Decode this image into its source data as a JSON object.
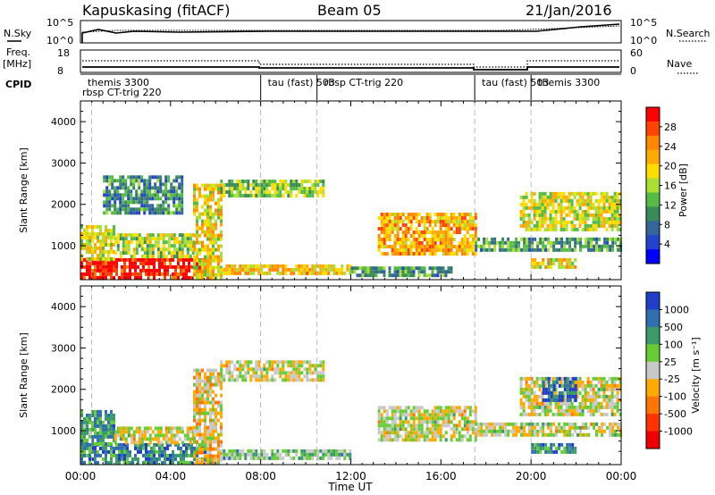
{
  "header": {
    "station": "Kapuskasing (fitACF)",
    "beam": "Beam 05",
    "date": "21/Jan/2016"
  },
  "top_panels": {
    "nsky_label": "N.Sky",
    "nsky_ticks": [
      "10^5",
      "10^0"
    ],
    "nsearch_label": "N.Search",
    "nsearch_ticks": [
      "10^5",
      "10^0"
    ],
    "freq_label": "Freq.",
    "freq_unit": "[MHz]",
    "freq_ticks": [
      "18",
      "8"
    ],
    "nave_label": "Nave",
    "nave_ticks": [
      "60",
      "0"
    ],
    "cpid_label": "CPID"
  },
  "cpid_segments": [
    {
      "t0": 0.0,
      "t1": 2.5,
      "names": [
        "themis 3300",
        "rbsp CT-trig 220"
      ]
    },
    {
      "t0": 8.0,
      "t1": 10.5,
      "names": [
        "tau (fast) 503"
      ]
    },
    {
      "t0": 10.5,
      "t1": 17.5,
      "names": [
        "rbsp CT-trig 220"
      ]
    },
    {
      "t0": 17.5,
      "t1": 20.0,
      "names": [
        "tau (fast) 503"
      ]
    },
    {
      "t0": 20.0,
      "t1": 24.0,
      "names": [
        "themis 3300"
      ]
    }
  ],
  "chart_data": [
    {
      "type": "heatmap",
      "title": "Power",
      "xlabel": "Time UT",
      "ylabel": "Slant Range [km]",
      "xlim": [
        0,
        24
      ],
      "ylim": [
        180,
        4500
      ],
      "x_ticks": [
        "00:00",
        "04:00",
        "08:00",
        "12:00",
        "16:00",
        "20:00",
        "00:00"
      ],
      "y_ticks": [
        "1000",
        "2000",
        "3000",
        "4000"
      ],
      "colorbar": {
        "label": "Power [dB]",
        "ticks": [
          "28",
          "24",
          "20",
          "16",
          "12",
          "8",
          "4"
        ],
        "colors": [
          "#ff0000",
          "#ff4400",
          "#ff8800",
          "#ffaa00",
          "#ffdd00",
          "#aade33",
          "#55bb44",
          "#3a8a5a",
          "#336699",
          "#2244cc",
          "#0000ff"
        ]
      },
      "regions": [
        {
          "t0": 0.0,
          "t1": 5.8,
          "r0": 250,
          "r1": 700,
          "level": 0.95
        },
        {
          "t0": 0.0,
          "t1": 1.5,
          "r0": 700,
          "r1": 1500,
          "level": 0.55
        },
        {
          "t0": 1.5,
          "t1": 5.0,
          "r0": 700,
          "r1": 1300,
          "level": 0.5
        },
        {
          "t0": 5.0,
          "t1": 6.2,
          "r0": 250,
          "r1": 2500,
          "level": 0.6
        },
        {
          "t0": 1.0,
          "t1": 4.5,
          "r0": 1800,
          "r1": 2700,
          "level": 0.3
        },
        {
          "t0": 6.2,
          "t1": 10.8,
          "r0": 2200,
          "r1": 2600,
          "level": 0.45
        },
        {
          "t0": 6.2,
          "t1": 12.0,
          "r0": 300,
          "r1": 550,
          "level": 0.65
        },
        {
          "t0": 12.0,
          "t1": 16.5,
          "r0": 250,
          "r1": 500,
          "level": 0.35
        },
        {
          "t0": 13.2,
          "t1": 17.5,
          "r0": 800,
          "r1": 1800,
          "level": 0.7
        },
        {
          "t0": 17.5,
          "t1": 24.0,
          "r0": 900,
          "r1": 1200,
          "level": 0.35
        },
        {
          "t0": 19.5,
          "t1": 24.0,
          "r0": 1400,
          "r1": 2300,
          "level": 0.55
        },
        {
          "t0": 20.0,
          "t1": 22.0,
          "r0": 450,
          "r1": 700,
          "level": 0.6
        }
      ]
    },
    {
      "type": "heatmap",
      "title": "Velocity",
      "xlabel": "Time UT",
      "ylabel": "Slant Range [km]",
      "xlim": [
        0,
        24
      ],
      "ylim": [
        180,
        4500
      ],
      "x_ticks": [
        "00:00",
        "04:00",
        "08:00",
        "12:00",
        "16:00",
        "20:00",
        "00:00"
      ],
      "y_ticks": [
        "1000",
        "2000",
        "3000",
        "4000"
      ],
      "colorbar": {
        "label": "Velocity [m s⁻¹]",
        "ticks": [
          "1000",
          "500",
          "100",
          "25",
          "-25",
          "-100",
          "-500",
          "-1000"
        ],
        "colors": [
          "#1f3fc8",
          "#2f6fb0",
          "#3a9a6a",
          "#66cc33",
          "#c8c8c8",
          "#ffaa00",
          "#ff7700",
          "#ff3300",
          "#ee0000"
        ]
      },
      "regions": [
        {
          "t0": 0.0,
          "t1": 5.8,
          "r0": 250,
          "r1": 700,
          "level": 0.78
        },
        {
          "t0": 0.0,
          "t1": 1.5,
          "r0": 700,
          "r1": 1500,
          "level": 0.72
        },
        {
          "t0": 1.5,
          "t1": 5.0,
          "r0": 700,
          "r1": 1100,
          "level": 0.5
        },
        {
          "t0": 5.0,
          "t1": 6.2,
          "r0": 250,
          "r1": 2500,
          "level": 0.45
        },
        {
          "t0": 6.2,
          "t1": 10.8,
          "r0": 2200,
          "r1": 2700,
          "level": 0.5
        },
        {
          "t0": 6.2,
          "t1": 12.0,
          "r0": 300,
          "r1": 550,
          "level": 0.62
        },
        {
          "t0": 13.2,
          "t1": 17.5,
          "r0": 800,
          "r1": 1600,
          "level": 0.5
        },
        {
          "t0": 17.5,
          "t1": 24.0,
          "r0": 900,
          "r1": 1200,
          "level": 0.5
        },
        {
          "t0": 19.5,
          "t1": 24.0,
          "r0": 1400,
          "r1": 2300,
          "level": 0.5
        },
        {
          "t0": 20.5,
          "t1": 22.0,
          "r0": 1700,
          "r1": 2300,
          "level": 0.88
        },
        {
          "t0": 20.0,
          "t1": 22.0,
          "r0": 450,
          "r1": 700,
          "level": 0.75
        }
      ]
    }
  ]
}
